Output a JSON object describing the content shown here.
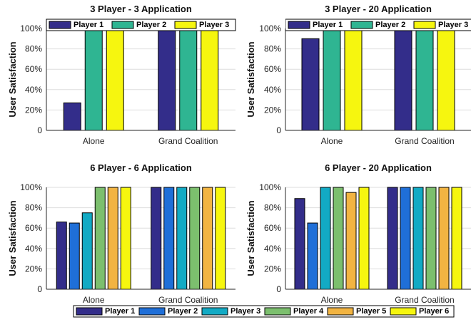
{
  "chart_data": [
    {
      "type": "bar",
      "title": "3 Player - 3 Application",
      "ylabel": "User Satisfaction",
      "categories": [
        "Alone",
        "Grand Coalition"
      ],
      "ylim": [
        0,
        100
      ],
      "yticks": [
        "0",
        "20%",
        "40%",
        "60%",
        "80%",
        "100%"
      ],
      "grid": true,
      "legend": "top",
      "series": [
        {
          "name": "Player 1",
          "color": "#332d8a",
          "values": [
            27,
            100
          ]
        },
        {
          "name": "Player 2",
          "color": "#2fb592",
          "values": [
            100,
            100
          ]
        },
        {
          "name": "Player 3",
          "color": "#f6f60f",
          "values": [
            100,
            100
          ]
        }
      ]
    },
    {
      "type": "bar",
      "title": "3 Player - 20 Application",
      "ylabel": "User Satisfaction",
      "categories": [
        "Alone",
        "Grand Coalition"
      ],
      "ylim": [
        0,
        100
      ],
      "yticks": [
        "0",
        "20%",
        "40%",
        "60%",
        "80%",
        "100%"
      ],
      "grid": true,
      "legend": "top",
      "series": [
        {
          "name": "Player 1",
          "color": "#332d8a",
          "values": [
            90,
            100
          ]
        },
        {
          "name": "Player 2",
          "color": "#2fb592",
          "values": [
            100,
            100
          ]
        },
        {
          "name": "Player 3",
          "color": "#f6f60f",
          "values": [
            100,
            100
          ]
        }
      ]
    },
    {
      "type": "bar",
      "title": "6 Player - 6 Application",
      "ylabel": "User Satisfaction",
      "categories": [
        "Alone",
        "Grand Coalition"
      ],
      "ylim": [
        0,
        100
      ],
      "yticks": [
        "0",
        "20%",
        "40%",
        "60%",
        "80%",
        "100%"
      ],
      "grid": true,
      "legend": "bottom",
      "series": [
        {
          "name": "Player 1",
          "color": "#332d8a",
          "values": [
            66,
            100
          ]
        },
        {
          "name": "Player 2",
          "color": "#1f6fd8",
          "values": [
            65,
            100
          ]
        },
        {
          "name": "Player 3",
          "color": "#12aac4",
          "values": [
            75,
            100
          ]
        },
        {
          "name": "Player 4",
          "color": "#7cbf6e",
          "values": [
            100,
            100
          ]
        },
        {
          "name": "Player 5",
          "color": "#f2b442",
          "values": [
            100,
            100
          ]
        },
        {
          "name": "Player 6",
          "color": "#f6f60f",
          "values": [
            100,
            100
          ]
        }
      ]
    },
    {
      "type": "bar",
      "title": "6 Player - 20 Application",
      "ylabel": "User Satisfaction",
      "categories": [
        "Alone",
        "Grand Coalition"
      ],
      "ylim": [
        0,
        100
      ],
      "yticks": [
        "0",
        "20%",
        "40%",
        "60%",
        "80%",
        "100%"
      ],
      "grid": true,
      "legend": "bottom",
      "series": [
        {
          "name": "Player 1",
          "color": "#332d8a",
          "values": [
            89,
            100
          ]
        },
        {
          "name": "Player 2",
          "color": "#1f6fd8",
          "values": [
            65,
            100
          ]
        },
        {
          "name": "Player 3",
          "color": "#12aac4",
          "values": [
            100,
            100
          ]
        },
        {
          "name": "Player 4",
          "color": "#7cbf6e",
          "values": [
            100,
            100
          ]
        },
        {
          "name": "Player 5",
          "color": "#f2b442",
          "values": [
            95,
            100
          ]
        },
        {
          "name": "Player 6",
          "color": "#f6f60f",
          "values": [
            100,
            100
          ]
        }
      ]
    }
  ]
}
